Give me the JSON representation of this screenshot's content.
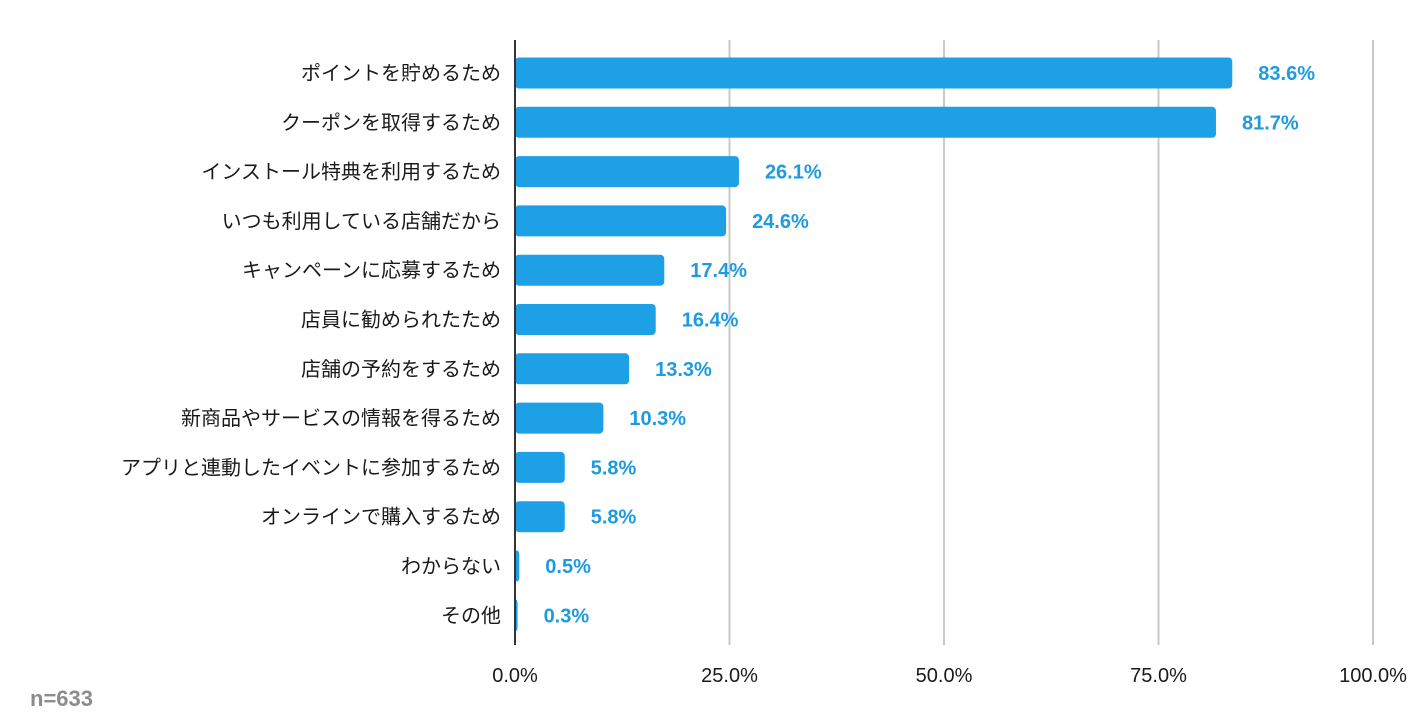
{
  "chart_data": {
    "type": "bar",
    "orientation": "horizontal",
    "categories": [
      "ポイントを貯めるため",
      "クーポンを取得するため",
      "インストール特典を利用するため",
      "いつも利用している店舗だから",
      "キャンペーンに応募するため",
      "店員に勧められたため",
      "店舗の予約をするため",
      "新商品やサービスの情報を得るため",
      "アプリと連動したイベントに参加するため",
      "オンラインで購入するため",
      "わからない",
      "その他"
    ],
    "values": [
      83.6,
      81.7,
      26.1,
      24.6,
      17.4,
      16.4,
      13.3,
      10.3,
      5.8,
      5.8,
      0.5,
      0.3
    ],
    "value_labels": [
      "83.6%",
      "81.7%",
      "26.1%",
      "24.6%",
      "17.4%",
      "16.4%",
      "13.3%",
      "10.3%",
      "5.8%",
      "5.8%",
      "0.5%",
      "0.3%"
    ],
    "xlim": [
      0,
      100
    ],
    "xticks": [
      0,
      25,
      50,
      75,
      100
    ],
    "xtick_labels": [
      "0.0%",
      "25.0%",
      "50.0%",
      "75.0%",
      "100.0%"
    ],
    "grid": true,
    "title": "",
    "xlabel": "",
    "ylabel": "",
    "bar_color": "#1ea0e6",
    "label_color": "#1e9be0"
  },
  "footnote": "n=633"
}
